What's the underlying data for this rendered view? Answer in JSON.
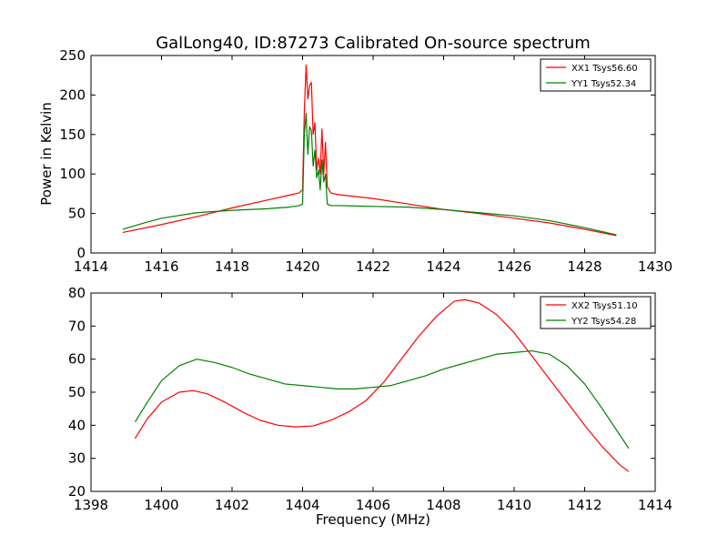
{
  "chart_data": [
    {
      "type": "line",
      "title": "GalLong40, ID:87273 Calibrated On-source spectrum",
      "xlabel": "",
      "ylabel": "Power in Kelvin",
      "xlim": [
        1414,
        1430
      ],
      "ylim": [
        0,
        250
      ],
      "xticks": [
        1414,
        1416,
        1418,
        1420,
        1422,
        1424,
        1426,
        1428,
        1430
      ],
      "yticks": [
        0,
        50,
        100,
        150,
        200,
        250
      ],
      "legend_position": "top-right",
      "series": [
        {
          "name": "XX1 Tsys56.60",
          "color": "#ff0000",
          "x": [
            1414.9,
            1416,
            1417,
            1418,
            1419,
            1419.6,
            1419.9,
            1420.0,
            1420.05,
            1420.1,
            1420.15,
            1420.2,
            1420.25,
            1420.3,
            1420.35,
            1420.4,
            1420.45,
            1420.5,
            1420.55,
            1420.6,
            1420.65,
            1420.7,
            1420.8,
            1421,
            1422,
            1423,
            1424,
            1425,
            1426,
            1427,
            1428,
            1428.9
          ],
          "values": [
            26,
            36,
            46,
            57,
            67,
            73,
            76,
            80,
            180,
            238,
            195,
            212,
            216,
            150,
            165,
            105,
            120,
            100,
            157,
            100,
            140,
            84,
            76,
            74,
            69,
            62,
            55,
            50,
            44,
            38,
            30,
            22
          ]
        },
        {
          "name": "YY1 Tsys52.34",
          "color": "#008000",
          "x": [
            1414.9,
            1415.5,
            1416,
            1417,
            1418,
            1419,
            1419.6,
            1419.9,
            1420.0,
            1420.05,
            1420.1,
            1420.15,
            1420.2,
            1420.25,
            1420.3,
            1420.35,
            1420.4,
            1420.45,
            1420.5,
            1420.55,
            1420.6,
            1420.65,
            1420.7,
            1420.8,
            1421,
            1422,
            1423,
            1424,
            1425,
            1426,
            1427,
            1428,
            1428.9
          ],
          "values": [
            30,
            38,
            44,
            51,
            54,
            56,
            58,
            60,
            62,
            150,
            177,
            125,
            160,
            155,
            110,
            130,
            95,
            105,
            80,
            118,
            90,
            100,
            62,
            60,
            60,
            59,
            58,
            55,
            51,
            47,
            41,
            32,
            23
          ]
        }
      ]
    },
    {
      "type": "line",
      "title": "",
      "xlabel": "Frequency (MHz)",
      "ylabel": "",
      "xlim": [
        1398,
        1414
      ],
      "ylim": [
        20,
        80
      ],
      "xticks": [
        1398,
        1400,
        1402,
        1404,
        1406,
        1408,
        1410,
        1412,
        1414
      ],
      "yticks": [
        20,
        30,
        40,
        50,
        60,
        70,
        80
      ],
      "legend_position": "top-right",
      "series": [
        {
          "name": "XX2 Tsys51.10",
          "color": "#ff0000",
          "x": [
            1399.25,
            1399.6,
            1400.0,
            1400.5,
            1400.9,
            1401.3,
            1401.8,
            1402.3,
            1402.8,
            1403.3,
            1403.8,
            1404.3,
            1404.8,
            1405.3,
            1405.8,
            1406.3,
            1406.8,
            1407.3,
            1407.8,
            1408.3,
            1408.6,
            1409.0,
            1409.5,
            1410.0,
            1410.5,
            1411.0,
            1411.5,
            1412.0,
            1412.5,
            1413.0,
            1413.25
          ],
          "values": [
            36,
            42,
            47,
            50,
            50.5,
            49.5,
            47,
            44,
            41.5,
            40,
            39.5,
            39.8,
            41.5,
            44,
            47.5,
            53,
            60,
            67,
            73,
            77.5,
            78,
            77,
            73.5,
            68,
            61,
            54,
            47,
            40,
            33.5,
            28,
            26
          ]
        },
        {
          "name": "YY2 Tsys54.28",
          "color": "#008000",
          "x": [
            1399.25,
            1399.6,
            1400.0,
            1400.5,
            1401.0,
            1401.5,
            1402.0,
            1402.5,
            1403.0,
            1403.5,
            1404.0,
            1404.5,
            1405.0,
            1405.5,
            1406.0,
            1406.5,
            1407.0,
            1407.5,
            1408.0,
            1408.5,
            1409.0,
            1409.5,
            1410.0,
            1410.5,
            1411.0,
            1411.5,
            1412.0,
            1412.5,
            1413.0,
            1413.25
          ],
          "values": [
            41,
            47,
            53.5,
            58,
            60,
            59,
            57.5,
            55.5,
            54,
            52.5,
            52,
            51.5,
            51,
            51,
            51.5,
            52,
            53.5,
            55,
            57,
            58.5,
            60,
            61.5,
            62,
            62.5,
            61.5,
            58,
            52.5,
            45,
            37,
            33
          ]
        }
      ]
    }
  ]
}
